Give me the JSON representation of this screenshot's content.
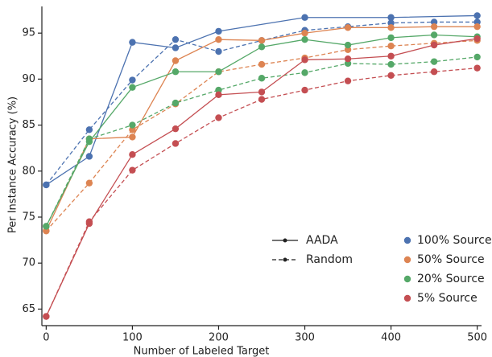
{
  "chart_data": {
    "type": "line",
    "xlabel": "Number of Labeled Target",
    "ylabel": "Per Instance Accuracy (%)",
    "xlim": [
      -5,
      505
    ],
    "ylim": [
      63.2,
      97.9
    ],
    "xticks": [
      0,
      100,
      200,
      300,
      400,
      500
    ],
    "yticks": [
      65,
      70,
      75,
      80,
      85,
      90,
      95
    ],
    "legend_position": "lower right",
    "legend": {
      "methods": [
        {
          "label": "AADA",
          "dashed": false
        },
        {
          "label": "Random",
          "dashed": true
        }
      ],
      "sources": [
        {
          "label": "100% Source",
          "color": "#4c72b0"
        },
        {
          "label": "50% Source",
          "color": "#dd8452"
        },
        {
          "label": "20% Source",
          "color": "#55a868"
        },
        {
          "label": "5% Source",
          "color": "#c44e52"
        }
      ]
    },
    "series": [
      {
        "method": 0,
        "source": 0,
        "x": [
          0,
          50,
          100,
          150,
          200,
          300,
          400,
          500
        ],
        "values": [
          78.5,
          81.6,
          94.0,
          93.4,
          95.2,
          96.7,
          96.7,
          96.9
        ]
      },
      {
        "method": 1,
        "source": 0,
        "x": [
          0,
          50,
          100,
          150,
          200,
          250,
          300,
          350,
          400,
          450,
          500
        ],
        "values": [
          78.5,
          84.5,
          89.9,
          94.3,
          93.0,
          94.2,
          95.3,
          95.7,
          96.1,
          96.2,
          96.2
        ]
      },
      {
        "method": 0,
        "source": 1,
        "x": [
          0,
          50,
          100,
          150,
          200,
          250,
          300,
          350,
          400,
          450,
          500
        ],
        "values": [
          73.5,
          83.5,
          83.7,
          92.0,
          94.3,
          94.2,
          95.0,
          95.6,
          95.6,
          95.7,
          95.7
        ]
      },
      {
        "method": 1,
        "source": 1,
        "x": [
          0,
          50,
          100,
          150,
          200,
          250,
          300,
          350,
          400,
          450,
          500
        ],
        "values": [
          73.5,
          78.7,
          84.5,
          87.3,
          90.8,
          91.6,
          92.3,
          93.2,
          93.6,
          93.9,
          94.2
        ]
      },
      {
        "method": 0,
        "source": 2,
        "x": [
          0,
          50,
          100,
          150,
          200,
          250,
          300,
          350,
          400,
          450,
          500
        ],
        "values": [
          74.0,
          83.2,
          89.1,
          90.8,
          90.8,
          93.5,
          94.3,
          93.7,
          94.5,
          94.8,
          94.6
        ]
      },
      {
        "method": 1,
        "source": 2,
        "x": [
          0,
          50,
          100,
          150,
          200,
          250,
          300,
          350,
          400,
          450,
          500
        ],
        "values": [
          74.0,
          83.5,
          85.0,
          87.4,
          88.8,
          90.1,
          90.7,
          91.7,
          91.6,
          91.9,
          92.4
        ]
      },
      {
        "method": 0,
        "source": 3,
        "x": [
          0,
          50,
          100,
          150,
          200,
          250,
          300,
          350,
          400,
          450,
          500
        ],
        "values": [
          64.2,
          74.3,
          81.8,
          84.6,
          88.3,
          88.6,
          92.1,
          92.2,
          92.5,
          93.7,
          94.4
        ]
      },
      {
        "method": 1,
        "source": 3,
        "x": [
          0,
          50,
          100,
          150,
          200,
          250,
          300,
          350,
          400,
          450,
          500
        ],
        "values": [
          64.2,
          74.5,
          80.1,
          83.0,
          85.8,
          87.8,
          88.8,
          89.8,
          90.4,
          90.8,
          91.2
        ]
      }
    ]
  }
}
